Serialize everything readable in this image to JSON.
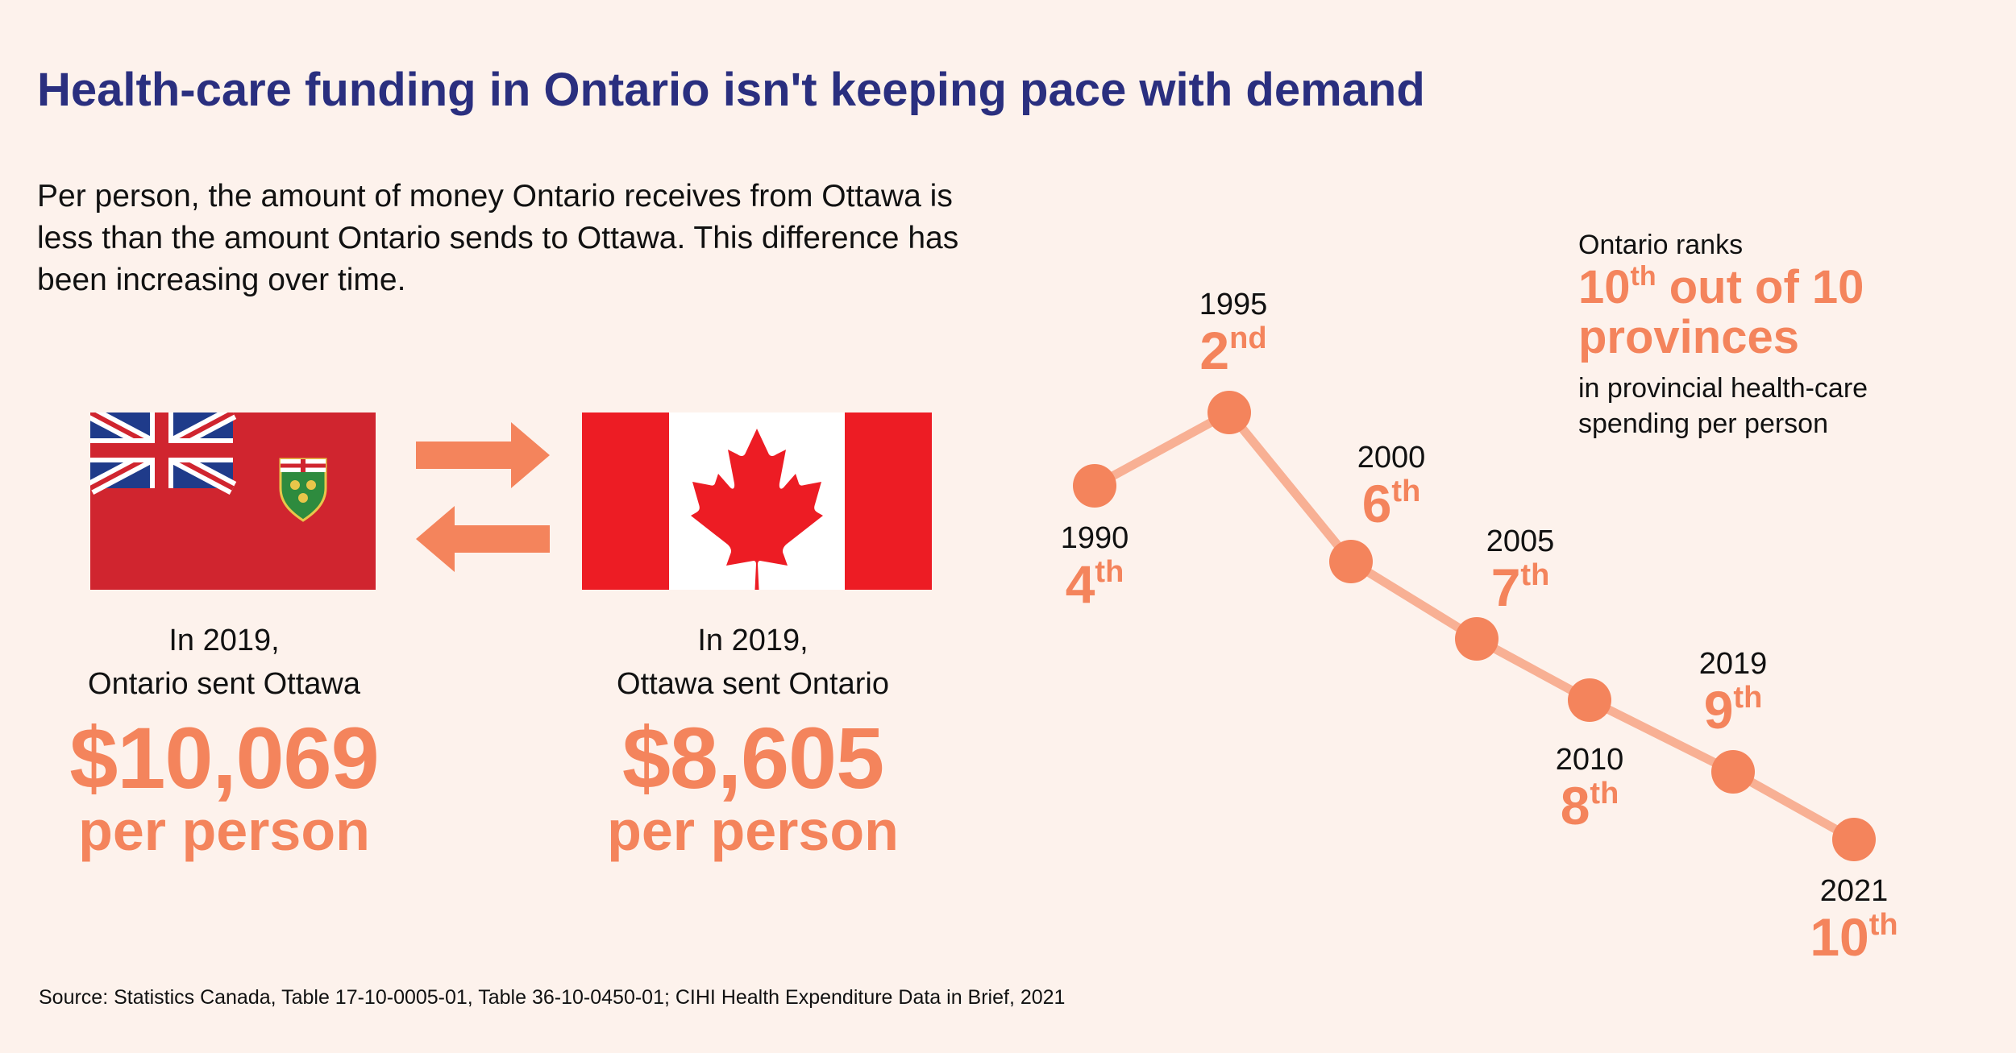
{
  "title": "Health-care funding in Ontario isn't keeping pace with demand",
  "intro": [
    "Per person, the amount of money Ontario receives from Ottawa is",
    "less than the amount Ontario sends to Ottawa. This difference has",
    "been increasing over time."
  ],
  "colors": {
    "title": "#2a2f7f",
    "accent": "#f4845c",
    "line": "#f8b094",
    "flag_red": "#d52b1e",
    "ontario_red": "#d0252f",
    "background": "#fdf2ec"
  },
  "flags": {
    "left": "ontario-flag",
    "right": "canada-flag"
  },
  "arrows": [
    "right-arrow-icon",
    "left-arrow-icon"
  ],
  "ontario_sent": {
    "line1": "In 2019,",
    "line2": "Ontario sent Ottawa",
    "amount": "$10,069",
    "unit": "per person"
  },
  "ottawa_sent": {
    "line1": "In 2019,",
    "line2": "Ottawa sent Ontario",
    "amount": "$8,605",
    "unit": "per person"
  },
  "rank_callout": {
    "line1": "Ontario ranks",
    "rank": "10",
    "suffix": "th",
    "rest1": " out of 10",
    "rest2": "provinces",
    "line3a": "in provincial health-care",
    "line3b": "spending per person"
  },
  "chart_data": {
    "type": "line",
    "x": [
      "1990",
      "1995",
      "2000",
      "2005",
      "2010",
      "2019",
      "2021"
    ],
    "ranks": [
      4,
      2,
      6,
      7,
      8,
      9,
      10
    ],
    "rank_labels": [
      {
        "num": "4",
        "suffix": "th"
      },
      {
        "num": "2",
        "suffix": "nd"
      },
      {
        "num": "6",
        "suffix": "th"
      },
      {
        "num": "7",
        "suffix": "th"
      },
      {
        "num": "8",
        "suffix": "th"
      },
      {
        "num": "9",
        "suffix": "th"
      },
      {
        "num": "10",
        "suffix": "th"
      }
    ],
    "grid": false,
    "y_inverted": true
  },
  "source": "Source: Statistics Canada, Table 17-10-0005-01, Table 36-10-0450-01; CIHI Health Expenditure Data in Brief, 2021"
}
